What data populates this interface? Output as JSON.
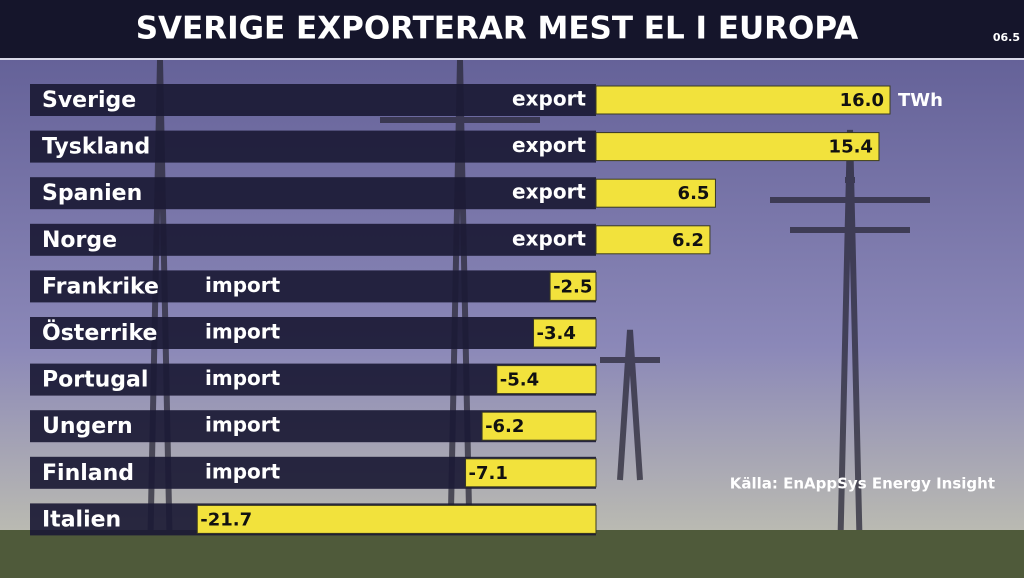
{
  "chart_data": {
    "type": "bar",
    "orientation": "horizontal",
    "title": "SVERIGE EXPORTERAR MEST EL I EUROPA",
    "clock": "06.5",
    "categories": [
      "Sverige",
      "Tyskland",
      "Spanien",
      "Norge",
      "Frankrike",
      "Österrike",
      "Portugal",
      "Ungern",
      "Finland",
      "Italien"
    ],
    "flows": [
      "export",
      "export",
      "export",
      "export",
      "import",
      "import",
      "import",
      "import",
      "import",
      null
    ],
    "values": [
      16.0,
      15.4,
      6.5,
      6.2,
      -2.5,
      -3.4,
      -5.4,
      -6.2,
      -7.1,
      -21.7
    ],
    "value_labels": [
      "16.0",
      "15.4",
      "6.5",
      "6.2",
      "-2.5",
      "-3.4",
      "-5.4",
      "-6.2",
      "-7.1",
      "-21.7"
    ],
    "unit": "TWh",
    "color": "#f2e23c",
    "source": "Källa: EnAppSys Energy Insight"
  }
}
